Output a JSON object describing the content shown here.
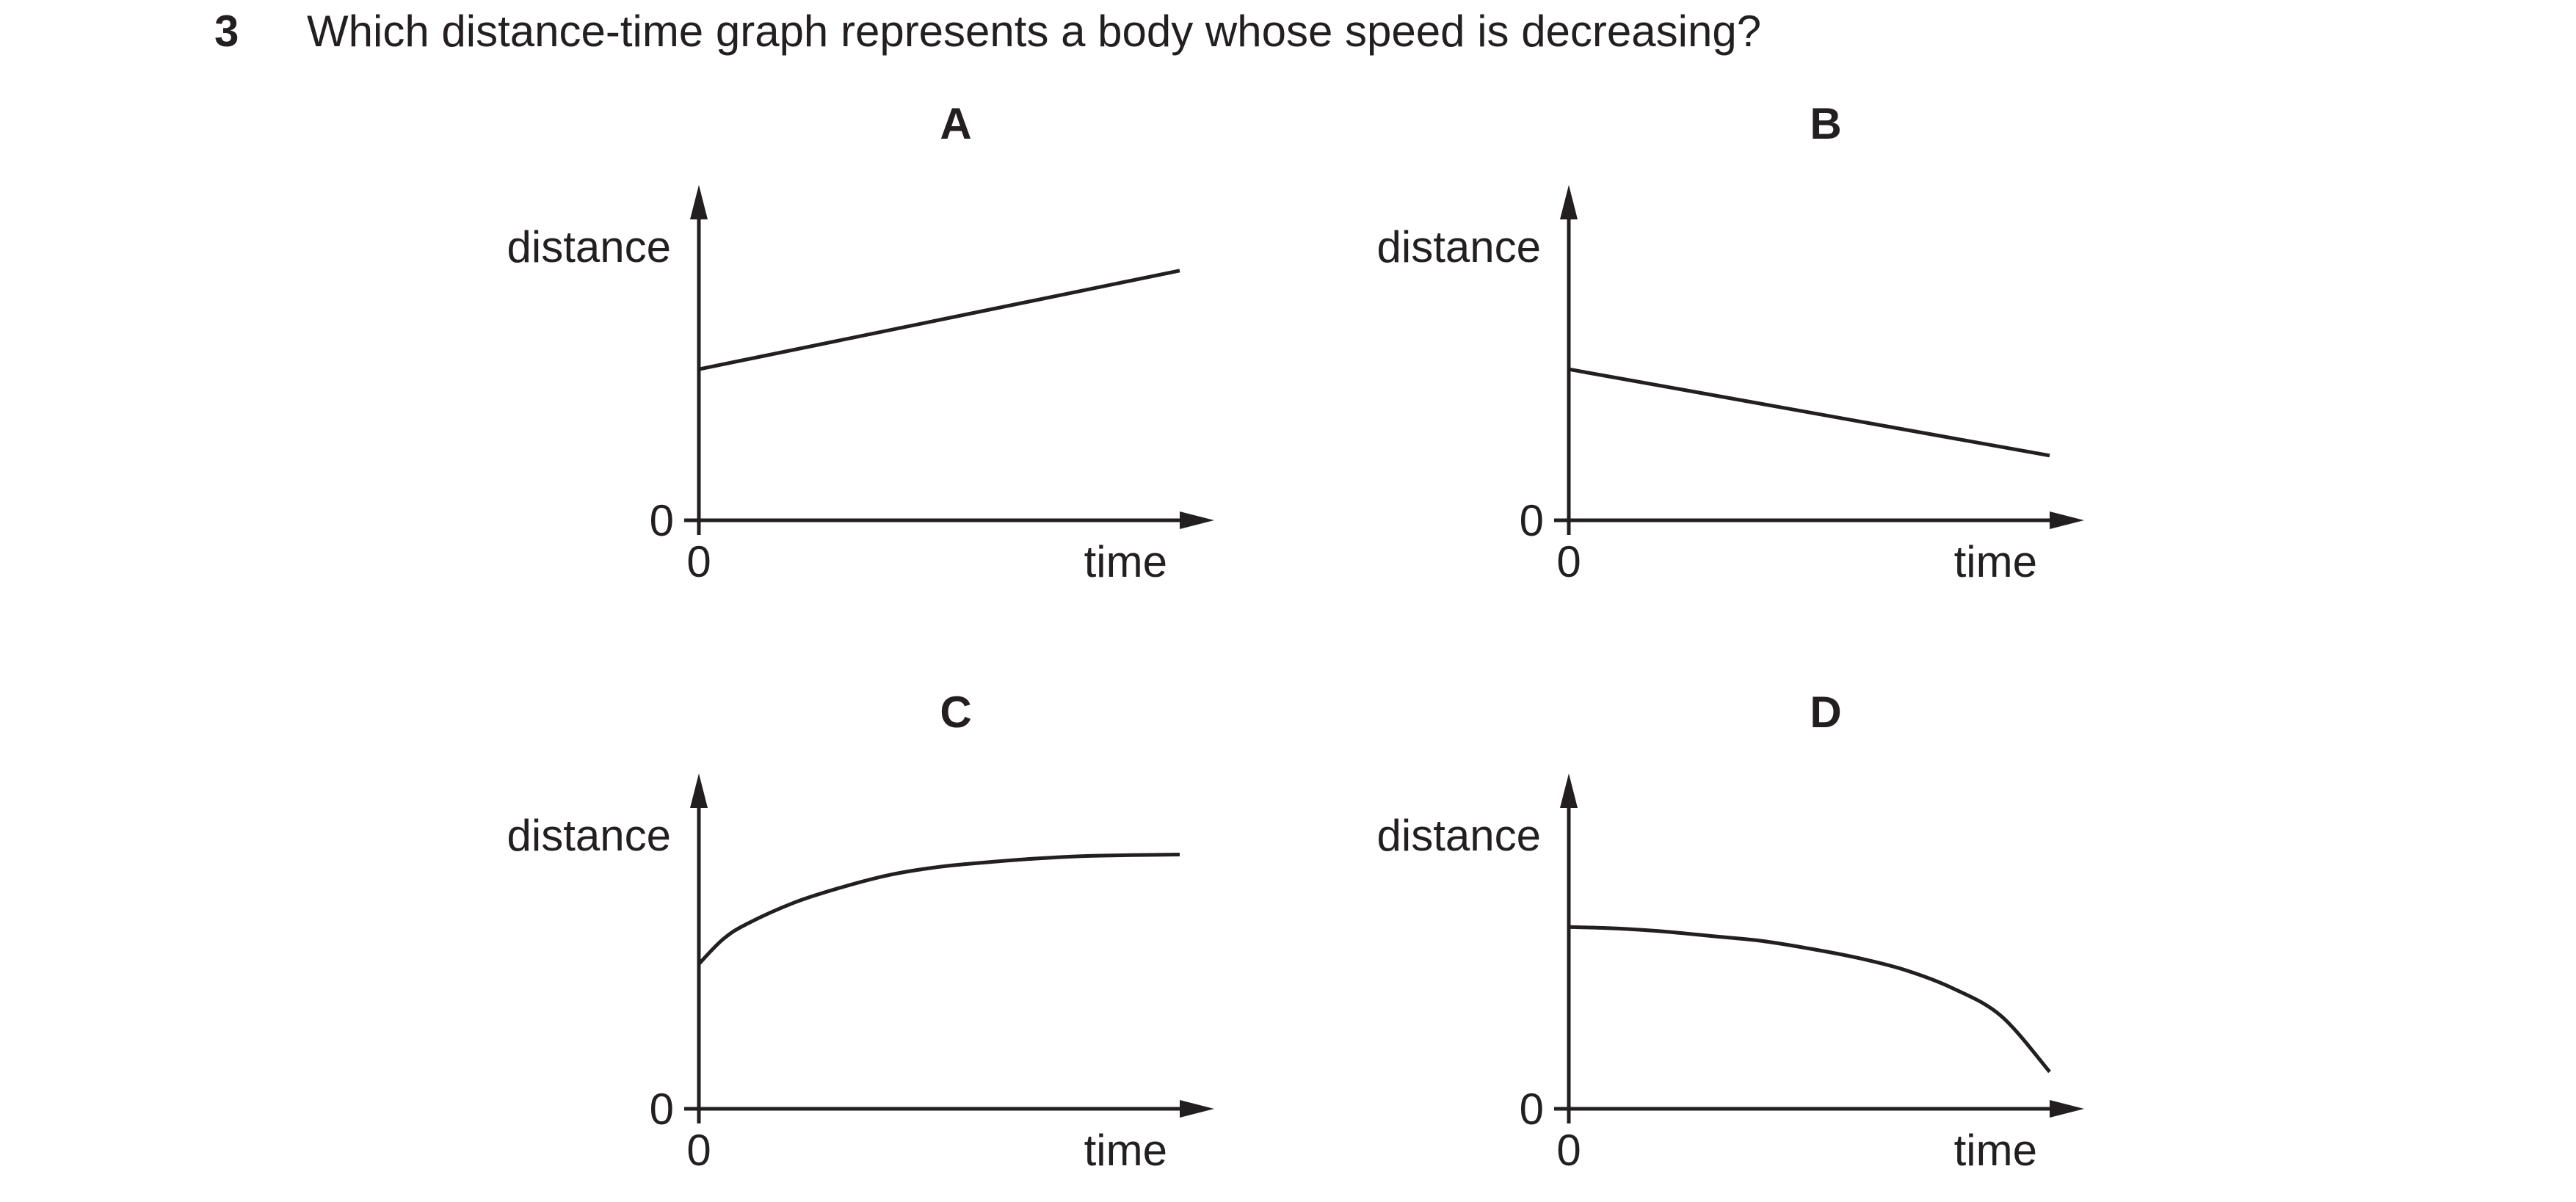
{
  "question": {
    "number": "3",
    "text": "Which distance-time graph represents a body whose speed is decreasing?"
  },
  "chart_data": [
    {
      "type": "line",
      "title": "A",
      "xlabel": "time",
      "ylabel": "distance",
      "x_tick": "0",
      "y_tick": "0",
      "shape": "straight line rising from a positive start",
      "series": [
        {
          "x": [
            0,
            1
          ],
          "y": [
            0.49,
            0.81
          ]
        }
      ],
      "xlim": [
        0,
        1
      ],
      "ylim": [
        0,
        1
      ]
    },
    {
      "type": "line",
      "title": "B",
      "xlabel": "time",
      "ylabel": "distance",
      "x_tick": "0",
      "y_tick": "0",
      "shape": "straight line falling from a positive start",
      "series": [
        {
          "x": [
            0,
            1
          ],
          "y": [
            0.49,
            0.21
          ]
        }
      ],
      "xlim": [
        0,
        1
      ],
      "ylim": [
        0,
        1
      ]
    },
    {
      "type": "line",
      "title": "C",
      "xlabel": "time",
      "ylabel": "distance",
      "x_tick": "0",
      "y_tick": "0",
      "shape": "curve rising and levelling off",
      "series": [
        {
          "x": [
            0,
            0.05,
            0.1,
            0.2,
            0.3,
            0.4,
            0.5,
            0.6,
            0.7,
            0.8,
            0.9,
            1
          ],
          "y": [
            0.47,
            0.55,
            0.6,
            0.67,
            0.72,
            0.76,
            0.785,
            0.8,
            0.812,
            0.82,
            0.823,
            0.825
          ]
        }
      ],
      "xlim": [
        0,
        1
      ],
      "ylim": [
        0,
        1
      ]
    },
    {
      "type": "line",
      "title": "D",
      "xlabel": "time",
      "ylabel": "distance",
      "x_tick": "0",
      "y_tick": "0",
      "shape": "curve falling ever more steeply",
      "series": [
        {
          "x": [
            0,
            0.1,
            0.2,
            0.3,
            0.4,
            0.5,
            0.6,
            0.7,
            0.8,
            0.9,
            1
          ],
          "y": [
            0.59,
            0.585,
            0.575,
            0.56,
            0.545,
            0.52,
            0.49,
            0.45,
            0.39,
            0.3,
            0.12
          ]
        }
      ],
      "xlim": [
        0,
        1
      ],
      "ylim": [
        0,
        1
      ]
    }
  ]
}
